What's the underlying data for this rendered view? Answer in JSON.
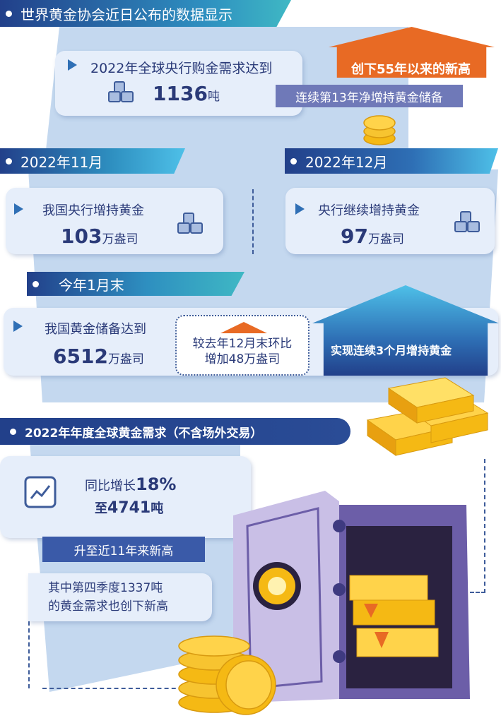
{
  "colors": {
    "navy": "#22408a",
    "teal": "#3fb8c4",
    "orange": "#e86a24",
    "purple": "#6f79b8",
    "panel": "#c4d8ef",
    "gold": "#f5b914"
  },
  "section1": {
    "title": "世界黄金协会近日公布的数据显示",
    "card_label": "2022年全球央行购金需求达到",
    "card_value": "1136",
    "card_unit": "吨",
    "arrow_text": "创下55年以来的新高",
    "tag": "连续第13年净增持黄金储备"
  },
  "nov": {
    "title": "2022年11月",
    "label": "我国央行增持黄金",
    "value": "103",
    "unit": "万盎司"
  },
  "dec": {
    "title": "2022年12月",
    "label": "央行继续增持黄金",
    "value": "97",
    "unit": "万盎司"
  },
  "jan": {
    "title": "今年1月末",
    "label": "我国黄金储备达到",
    "value": "6512",
    "unit": "万盎司",
    "compare_line1": "较去年12月末环比",
    "compare_line2": "增加48万盎司",
    "arrow_text": "实现连续3个月增持黄金"
  },
  "annual": {
    "title": "2022年年度全球黄金需求（不含场外交易）",
    "growth_prefix": "同比增长",
    "growth_value": "18%",
    "total_prefix": "至",
    "total_value": "4741",
    "total_unit": "吨",
    "tag": "升至近11年来新高",
    "note_line1": "其中第四季度1337吨",
    "note_line2": "的黄金需求也创下新高"
  },
  "icons": [
    "gold-bars-icon",
    "play-triangle-icon",
    "coin-stack-icon",
    "trend-chart-icon",
    "safe-illustration"
  ]
}
